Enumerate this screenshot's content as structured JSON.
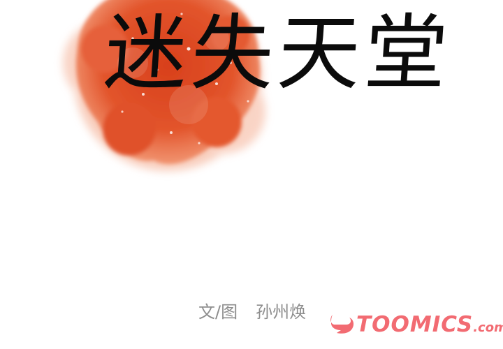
{
  "title": "迷失天堂",
  "credits": {
    "label": "文/图",
    "author": "孙州焕"
  },
  "watermark": {
    "brand": "TOOMICS",
    "tld": ".com",
    "color": "#f26b72"
  },
  "colors": {
    "splash": "#e2542b",
    "title": "#0b0b0b",
    "credits": "#8d8d8d"
  }
}
